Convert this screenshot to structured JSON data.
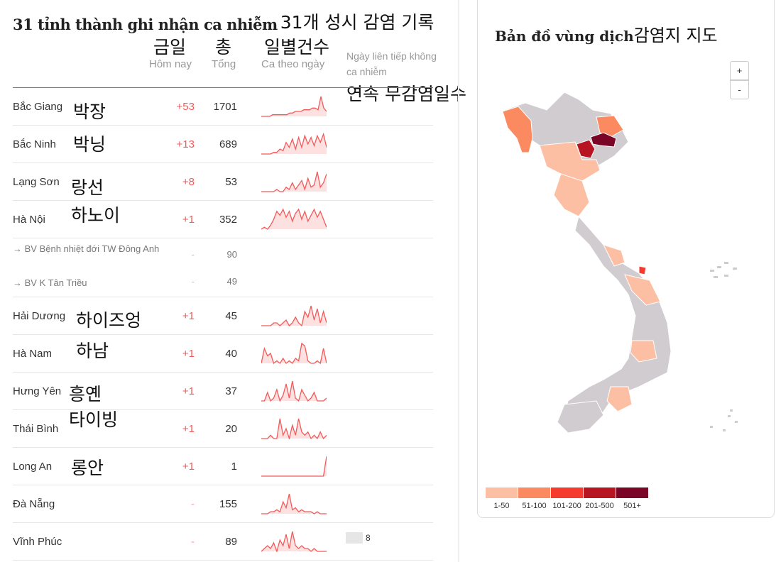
{
  "title": "31 tỉnh thành ghi nhận ca nhiễm",
  "title_ko": "31개 성시 감염 기록",
  "headers": {
    "today": "Hôm nay",
    "today_ko": "금일",
    "total": "Tổng",
    "total_ko": "총",
    "daily": "Ca theo ngày",
    "daily_ko": "일별건수",
    "streak": "Ngày liên tiếp không ca nhiễm",
    "streak_ko": "연속 무감염일수"
  },
  "rows": [
    {
      "name": "Bắc Giang",
      "ko": "박장",
      "today": "+53",
      "total": "1701",
      "spark": [
        0,
        0,
        0,
        0,
        1,
        1,
        1,
        1,
        1,
        1,
        2,
        2,
        3,
        3,
        3,
        4,
        4,
        4,
        5,
        5,
        4,
        12,
        5,
        3
      ]
    },
    {
      "name": "Bắc Ninh",
      "ko": "박닝",
      "today": "+13",
      "total": "689",
      "spark": [
        0,
        0,
        0,
        0,
        1,
        1,
        3,
        2,
        7,
        4,
        9,
        3,
        10,
        4,
        11,
        6,
        10,
        5,
        11,
        7,
        12,
        4
      ]
    },
    {
      "name": "Lạng Sơn",
      "ko": "랑선",
      "today": "+8",
      "total": "53",
      "spark": [
        0,
        0,
        0,
        0,
        0,
        1,
        0,
        0,
        2,
        1,
        4,
        1,
        3,
        5,
        1,
        6,
        2,
        3,
        9,
        2,
        4,
        8
      ]
    },
    {
      "name": "Hà Nội",
      "ko": "하노이",
      "today": "+1",
      "total": "352",
      "spark": [
        0,
        1,
        0,
        2,
        5,
        9,
        7,
        10,
        6,
        9,
        4,
        8,
        10,
        5,
        9,
        4,
        7,
        10,
        6,
        9,
        5,
        1
      ]
    },
    {
      "name": "Hải Dương",
      "ko": "하이즈엉",
      "today": "+1",
      "total": "45",
      "spark": [
        0,
        0,
        0,
        0,
        1,
        1,
        0,
        1,
        2,
        0,
        1,
        3,
        1,
        0,
        5,
        3,
        7,
        2,
        6,
        1,
        5,
        1
      ]
    },
    {
      "name": "Hà Nam",
      "ko": "하남",
      "today": "+1",
      "total": "40",
      "spark": [
        0,
        6,
        3,
        4,
        0,
        1,
        0,
        2,
        0,
        1,
        0,
        2,
        1,
        8,
        7,
        1,
        0,
        0,
        1,
        0,
        6,
        0
      ]
    },
    {
      "name": "Hưng Yên",
      "ko": "흥옌",
      "today": "+1",
      "total": "37",
      "spark": [
        0,
        0,
        3,
        0,
        1,
        4,
        0,
        2,
        6,
        1,
        7,
        1,
        0,
        4,
        2,
        0,
        1,
        3,
        0,
        0,
        0,
        1
      ]
    },
    {
      "name": "Thái Bình",
      "ko": "타이빙",
      "today": "+1",
      "total": "20",
      "spark": [
        0,
        0,
        0,
        1,
        0,
        0,
        6,
        1,
        3,
        0,
        4,
        1,
        6,
        2,
        1,
        2,
        0,
        1,
        0,
        2,
        0,
        1
      ]
    },
    {
      "name": "Long An",
      "ko": "롱안",
      "today": "+1",
      "total": "1",
      "spark": [
        0,
        0,
        0,
        0,
        0,
        0,
        0,
        0,
        0,
        0,
        0,
        0,
        0,
        0,
        0,
        0,
        0,
        0,
        0,
        0,
        0,
        12
      ]
    },
    {
      "name": "Đà Nẵng",
      "ko": "",
      "today": "-",
      "total": "155",
      "spark": [
        0,
        0,
        0,
        1,
        1,
        2,
        1,
        6,
        3,
        10,
        2,
        3,
        1,
        2,
        1,
        1,
        1,
        0,
        1,
        0,
        0,
        0
      ]
    },
    {
      "name": "Vĩnh Phúc",
      "ko": "",
      "today": "-",
      "total": "89",
      "spark": [
        0,
        1,
        2,
        1,
        3,
        0,
        4,
        2,
        6,
        1,
        7,
        2,
        1,
        2,
        1,
        1,
        0,
        1,
        0,
        0,
        0,
        0
      ],
      "streak": "8"
    }
  ],
  "subrows": [
    {
      "name": "→ BV Bệnh nhiệt đới TW Đông Anh",
      "today": "-",
      "total": "90"
    },
    {
      "name": "→ BV K Tân Triều",
      "today": "-",
      "total": "49"
    }
  ],
  "map": {
    "title": "Bản đồ vùng dịch",
    "title_ko": "감염지 지도",
    "zoom_in": "+",
    "zoom_out": "-",
    "legend": [
      {
        "label": "1-50",
        "color": "#fdbfa3"
      },
      {
        "label": "51-100",
        "color": "#fc8a60"
      },
      {
        "label": "101-200",
        "color": "#f53b2e"
      },
      {
        "label": "201-500",
        "color": "#b71522"
      },
      {
        "label": "501+",
        "color": "#7a0526"
      }
    ],
    "base_color": "#d0ccd0"
  },
  "colors": {
    "accent": "#f25a5a",
    "spark_fill": "#fde0e0"
  }
}
